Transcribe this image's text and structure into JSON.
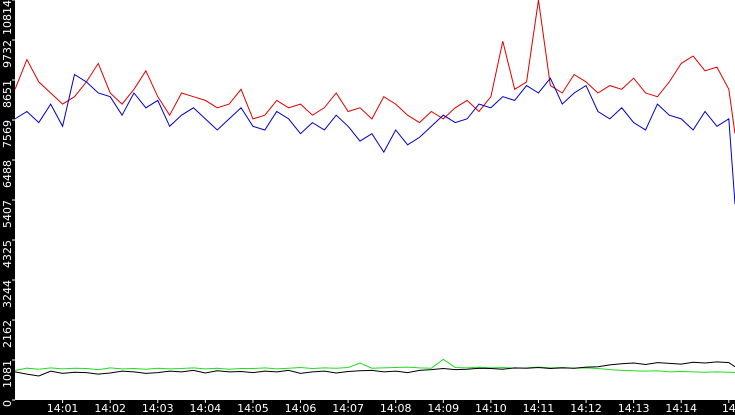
{
  "chart_data": {
    "type": "line",
    "x": [
      840,
      840.25,
      840.5,
      840.75,
      841,
      841.25,
      841.5,
      841.75,
      842,
      842.25,
      842.5,
      842.75,
      843,
      843.25,
      843.5,
      843.75,
      844,
      844.25,
      844.5,
      844.75,
      845,
      845.25,
      845.5,
      845.75,
      846,
      846.25,
      846.5,
      846.75,
      847,
      847.25,
      847.5,
      847.75,
      848,
      848.25,
      848.5,
      848.75,
      849,
      849.25,
      849.5,
      849.75,
      850,
      850.25,
      850.5,
      850.75,
      851,
      851.25,
      851.5,
      851.75,
      852,
      852.25,
      852.5,
      852.75,
      853,
      853.25,
      853.5,
      853.75,
      854,
      854.25,
      854.5,
      854.75,
      855,
      855.13
    ],
    "series": [
      {
        "color": "#e00000",
        "values": [
          8400,
          9200,
          8600,
          8300,
          8000,
          8200,
          8600,
          9100,
          8300,
          8000,
          8400,
          8900,
          8200,
          7700,
          8300,
          8200,
          8100,
          7900,
          8000,
          8400,
          7600,
          7700,
          8100,
          7900,
          8000,
          7700,
          7900,
          8300,
          7800,
          7900,
          7600,
          8200,
          8000,
          7700,
          7500,
          7800,
          7600,
          7900,
          8100,
          7800,
          8200,
          9700,
          8400,
          8600,
          10814,
          8500,
          8300,
          8800,
          8600,
          8300,
          8500,
          8400,
          8700,
          8300,
          8200,
          8600,
          9100,
          9300,
          8900,
          9000,
          8400,
          7200
        ]
      },
      {
        "color": "#0000cc",
        "values": [
          7600,
          7800,
          7500,
          8000,
          7400,
          8800,
          8600,
          8300,
          8200,
          7700,
          8300,
          7900,
          8100,
          7400,
          7700,
          7900,
          7600,
          7300,
          7600,
          7900,
          7400,
          7300,
          7800,
          7600,
          7200,
          7500,
          7300,
          7700,
          7400,
          7000,
          7200,
          6700,
          7300,
          6900,
          7100,
          7400,
          7700,
          7500,
          7600,
          8000,
          7900,
          8200,
          8100,
          8500,
          8300,
          8700,
          8000,
          8300,
          8500,
          7800,
          7600,
          7900,
          7500,
          7300,
          8000,
          7700,
          7600,
          7300,
          7800,
          7400,
          7600,
          5300
        ]
      },
      {
        "color": "#22dd22",
        "values": [
          800,
          860,
          830,
          870,
          840,
          860,
          850,
          820,
          870,
          840,
          850,
          830,
          860,
          840,
          850,
          870,
          840,
          860,
          830,
          850,
          850,
          870,
          840,
          860,
          880,
          850,
          870,
          860,
          880,
          1000,
          860,
          870,
          880,
          890,
          870,
          860,
          1100,
          880,
          870,
          890,
          870,
          880,
          860,
          870,
          890,
          870,
          880,
          860,
          870,
          850,
          820,
          800,
          790,
          780,
          790,
          760,
          770,
          760,
          750,
          760,
          750,
          740
        ]
      },
      {
        "color": "#000000",
        "values": [
          760,
          700,
          650,
          780,
          720,
          750,
          740,
          700,
          730,
          780,
          760,
          720,
          740,
          780,
          760,
          800,
          730,
          790,
          760,
          770,
          740,
          780,
          760,
          800,
          720,
          760,
          780,
          730,
          770,
          790,
          800,
          760,
          780,
          740,
          800,
          820,
          850,
          820,
          830,
          860,
          850,
          830,
          870,
          860,
          880,
          850,
          870,
          860,
          890,
          900,
          950,
          980,
          1000,
          960,
          1010,
          990,
          970,
          1020,
          1000,
          1030,
          1010,
          900
        ]
      }
    ],
    "xlim": [
      840,
      855.13
    ],
    "xticks": [
      {
        "value": 841,
        "label": "14:01"
      },
      {
        "value": 842,
        "label": "14:02"
      },
      {
        "value": 843,
        "label": "14:03"
      },
      {
        "value": 844,
        "label": "14:04"
      },
      {
        "value": 845,
        "label": "14:05"
      },
      {
        "value": 846,
        "label": "14:06"
      },
      {
        "value": 847,
        "label": "14:07"
      },
      {
        "value": 848,
        "label": "14:08"
      },
      {
        "value": 849,
        "label": "14:09"
      },
      {
        "value": 850,
        "label": "14:10"
      },
      {
        "value": 851,
        "label": "14:11"
      },
      {
        "value": 852,
        "label": "14:12"
      },
      {
        "value": 853,
        "label": "14:13"
      },
      {
        "value": 854,
        "label": "14:14"
      },
      {
        "value": 855,
        "label": "14"
      }
    ],
    "ylim": [
      0,
      10814
    ],
    "yticks": [
      0,
      1081,
      2162,
      3244,
      4325,
      5407,
      6488,
      7569,
      8651,
      9732,
      10814
    ]
  }
}
